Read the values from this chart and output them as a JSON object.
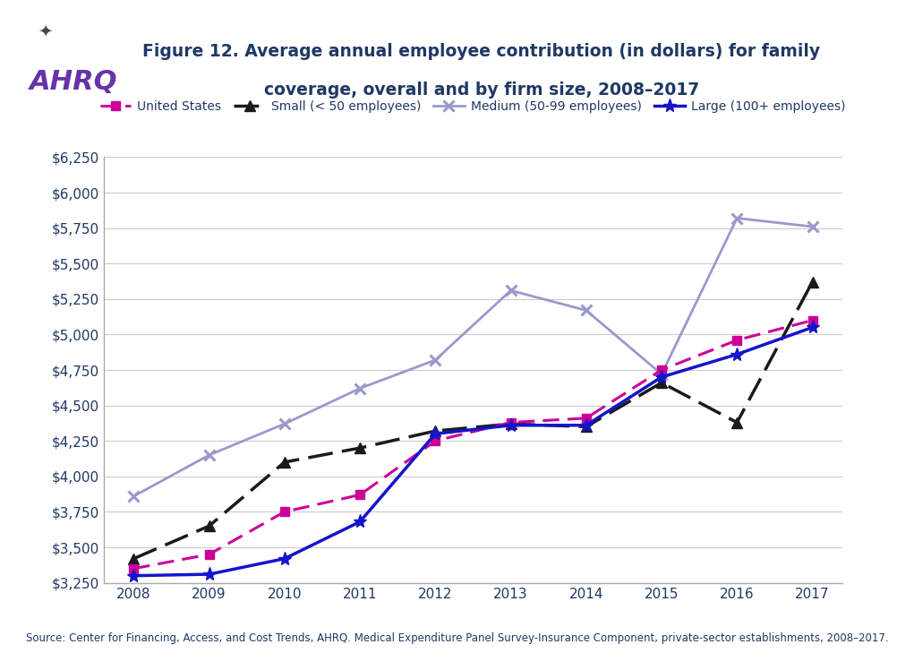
{
  "years": [
    2008,
    2009,
    2010,
    2011,
    2012,
    2013,
    2014,
    2015,
    2016,
    2017
  ],
  "united_states": [
    3350,
    3450,
    3750,
    3870,
    4250,
    4380,
    4410,
    4750,
    4960,
    5100
  ],
  "small": [
    3420,
    3650,
    4100,
    4200,
    4320,
    4370,
    4350,
    4660,
    4380,
    5370
  ],
  "medium": [
    3860,
    4150,
    4370,
    4620,
    4820,
    5310,
    5170,
    4720,
    5820,
    5760
  ],
  "large": [
    3300,
    3310,
    3420,
    3680,
    4300,
    4360,
    4360,
    4700,
    4860,
    5050
  ],
  "us_color": "#CC0099",
  "small_color": "#1A1A1A",
  "medium_color": "#9999CC",
  "large_color": "#1414CC",
  "title_line1": "Figure 12. Average annual employee contribution (in dollars) for family",
  "title_line2": "coverage, overall and by firm size, 2008–2017",
  "source_text": "Source: Center for Financing, Access, and Cost Trends, AHRQ. Medical Expenditure Panel Survey-Insurance Component, private-sector establishments, 2008–2017.",
  "ylim_min": 3250,
  "ylim_max": 6250,
  "ytick_values": [
    3250,
    3500,
    3750,
    4000,
    4250,
    4500,
    4750,
    5000,
    5250,
    5500,
    5750,
    6000,
    6250
  ],
  "legend_labels": [
    "United States",
    "Small (< 50 employees)",
    "Medium (50-99 employees)",
    "Large (100+ employees)"
  ],
  "header_bg": "#D8D8D8",
  "title_color": "#1F3864",
  "axis_color": "#1F3864",
  "tick_label_color": "#1F3864"
}
